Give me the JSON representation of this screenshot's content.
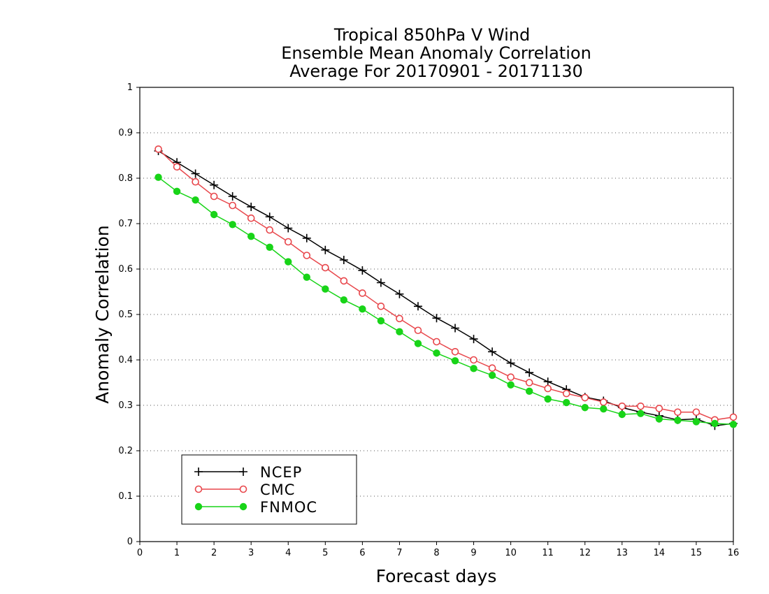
{
  "chart_data": {
    "type": "line",
    "title": [
      "Tropical 850hPa V Wind",
      "Ensemble Mean Anomaly Correlation",
      "Average For 20170901 - 20171130"
    ],
    "xlabel": "Forecast days",
    "ylabel": "Anomaly Correlation",
    "xlim": [
      0,
      16
    ],
    "ylim": [
      0,
      1
    ],
    "xticks": [
      "0",
      "1",
      "2",
      "3",
      "4",
      "5",
      "6",
      "7",
      "8",
      "9",
      "10",
      "11",
      "12",
      "13",
      "14",
      "15",
      "16"
    ],
    "yticks": [
      "0",
      "0.1",
      "0.2",
      "0.3",
      "0.4",
      "0.5",
      "0.6",
      "0.7",
      "0.8",
      "0.9",
      "1"
    ],
    "grid": "dotted-horizontal",
    "legend_position": "bottom-left",
    "x": [
      0.5,
      1,
      1.5,
      2,
      2.5,
      3,
      3.5,
      4,
      4.5,
      5,
      5.5,
      6,
      6.5,
      7,
      7.5,
      8,
      8.5,
      9,
      9.5,
      10,
      10.5,
      11,
      11.5,
      12,
      12.5,
      13,
      13.5,
      14,
      14.5,
      15,
      15.5,
      16
    ],
    "series": [
      {
        "name": "NCEP",
        "color": "#000000",
        "marker": "plus",
        "values": [
          0.86,
          0.835,
          0.81,
          0.785,
          0.76,
          0.737,
          0.715,
          0.69,
          0.668,
          0.642,
          0.62,
          0.597,
          0.57,
          0.545,
          0.518,
          0.492,
          0.47,
          0.446,
          0.418,
          0.393,
          0.372,
          0.352,
          0.335,
          0.318,
          0.31,
          0.295,
          0.285,
          0.277,
          0.268,
          0.27,
          0.255,
          0.26
        ]
      },
      {
        "name": "CMC",
        "color": "#e8474c",
        "marker": "open-circle",
        "values": [
          0.864,
          0.825,
          0.792,
          0.76,
          0.74,
          0.712,
          0.686,
          0.66,
          0.63,
          0.603,
          0.574,
          0.547,
          0.518,
          0.491,
          0.465,
          0.44,
          0.418,
          0.4,
          0.382,
          0.362,
          0.35,
          0.337,
          0.326,
          0.317,
          0.307,
          0.298,
          0.298,
          0.293,
          0.285,
          0.285,
          0.268,
          0.274
        ]
      },
      {
        "name": "FNMOC",
        "color": "#18d418",
        "marker": "filled-circle",
        "values": [
          0.802,
          0.771,
          0.752,
          0.72,
          0.698,
          0.672,
          0.648,
          0.616,
          0.582,
          0.556,
          0.532,
          0.512,
          0.486,
          0.462,
          0.436,
          0.415,
          0.398,
          0.381,
          0.366,
          0.345,
          0.331,
          0.314,
          0.306,
          0.295,
          0.292,
          0.28,
          0.282,
          0.27,
          0.267,
          0.264,
          0.26,
          0.258
        ]
      }
    ]
  }
}
